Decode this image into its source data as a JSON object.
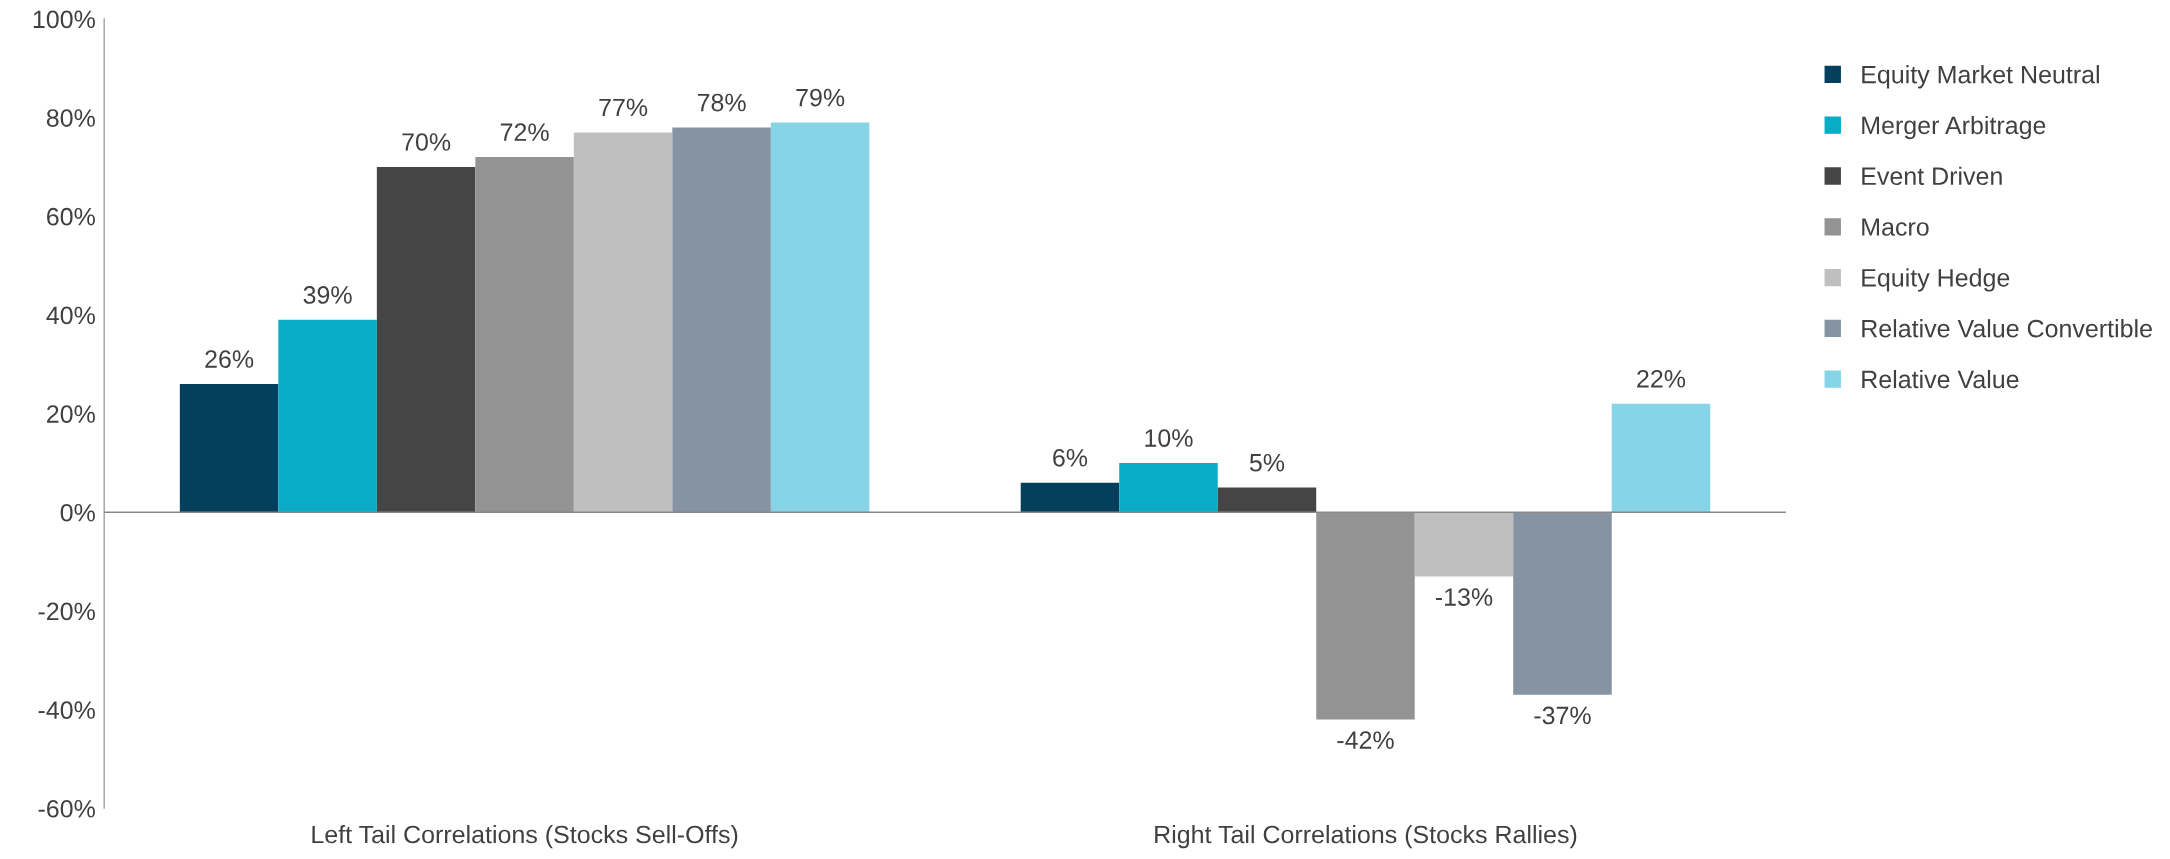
{
  "chart_data": {
    "type": "bar",
    "categories": [
      "Left Tail Correlations (Stocks Sell-Offs)",
      "Right Tail Correlations (Stocks Rallies)"
    ],
    "series": [
      {
        "name": "Equity Market Neutral",
        "color": "#053f5e",
        "values": [
          26,
          6
        ],
        "value_labels": [
          "26%",
          "6%"
        ]
      },
      {
        "name": "Merger Arbitrage",
        "color": "#08acc6",
        "values": [
          39,
          10
        ],
        "value_labels": [
          "39%",
          "10%"
        ]
      },
      {
        "name": "Event Driven",
        "color": "#454545",
        "values": [
          70,
          5
        ],
        "value_labels": [
          "70%",
          "5%"
        ]
      },
      {
        "name": "Macro",
        "color": "#939393",
        "values": [
          72,
          -42
        ],
        "value_labels": [
          "72%",
          "-42%"
        ]
      },
      {
        "name": "Equity Hedge",
        "color": "#bfbfbf",
        "values": [
          77,
          -13
        ],
        "value_labels": [
          "77%",
          "-13%"
        ]
      },
      {
        "name": "Relative Value Convertible",
        "color": "#8593a2",
        "values": [
          78,
          -37
        ],
        "value_labels": [
          "78%",
          "-37%"
        ]
      },
      {
        "name": "Relative Value",
        "color": "#86d4e6",
        "values": [
          79,
          22
        ],
        "value_labels": [
          "79%",
          "22%"
        ]
      }
    ],
    "ylim": [
      -60,
      100
    ],
    "yticks": [
      {
        "value": -60,
        "label": "-60%"
      },
      {
        "value": -40,
        "label": "-40%"
      },
      {
        "value": -20,
        "label": "-20%"
      },
      {
        "value": 0,
        "label": "0%"
      },
      {
        "value": 20,
        "label": "20%"
      },
      {
        "value": 40,
        "label": "40%"
      },
      {
        "value": 60,
        "label": "60%"
      },
      {
        "value": 80,
        "label": "80%"
      },
      {
        "value": 100,
        "label": "100%"
      }
    ],
    "ref_lines": [
      {
        "axis": "y",
        "value": 0,
        "color": "#888888"
      }
    ],
    "grid": false,
    "legend": "right"
  }
}
